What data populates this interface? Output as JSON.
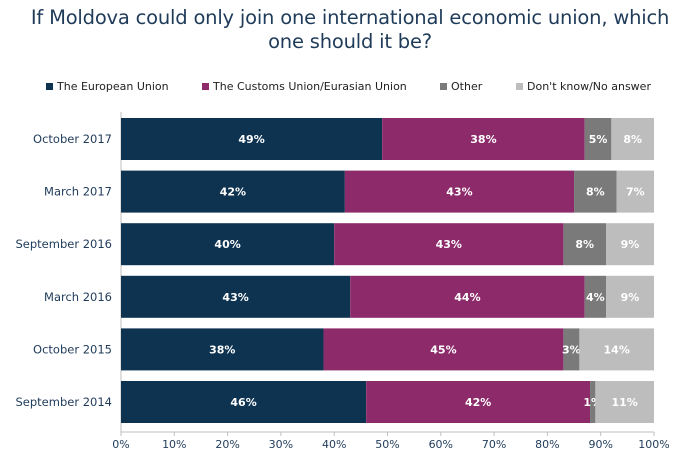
{
  "title": {
    "line1": "If Moldova could only join one international economic union, which",
    "line2": "one should it be?"
  },
  "chart_data": {
    "type": "bar",
    "orientation": "horizontal",
    "stacked": true,
    "title": "If Moldova could only join one international economic union, which one should it be?",
    "categories": [
      "October 2017",
      "March 2017",
      "September 2016",
      "March 2016",
      "October 2015",
      "September 2014"
    ],
    "series": [
      {
        "name": "The European Union",
        "color": "#0e3350",
        "values": [
          49,
          42,
          40,
          43,
          38,
          46
        ],
        "labels": [
          "49%",
          "42%",
          "40%",
          "43%",
          "38%",
          "46%"
        ]
      },
      {
        "name": "The Customs Union/Eurasian Union",
        "color": "#8c2a6a",
        "values": [
          38,
          43,
          43,
          44,
          45,
          42
        ],
        "labels": [
          "38%",
          "43%",
          "43%",
          "44%",
          "45%",
          "42%"
        ]
      },
      {
        "name": "Other",
        "color": "#7a7a7a",
        "values": [
          5,
          8,
          8,
          4,
          3,
          1
        ],
        "labels": [
          "5%",
          "8%",
          "8%",
          "4%",
          "3%",
          "1%"
        ]
      },
      {
        "name": "Don't know/No answer",
        "color": "#bdbdbd",
        "values": [
          8,
          7,
          9,
          9,
          14,
          11
        ],
        "labels": [
          "8%",
          "7%",
          "9%",
          "9%",
          "14%",
          "11%"
        ]
      }
    ],
    "xlim": [
      0,
      100
    ],
    "xticks": [
      "0%",
      "10%",
      "20%",
      "30%",
      "40%",
      "50%",
      "60%",
      "70%",
      "80%",
      "90%",
      "100%"
    ],
    "legend_position": "top",
    "grid": false
  }
}
